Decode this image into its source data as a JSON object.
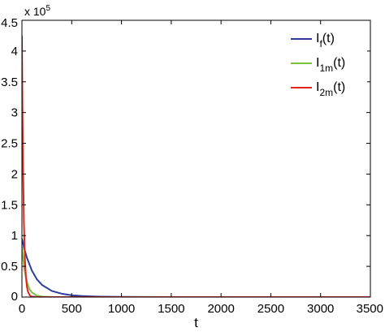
{
  "chart_data": {
    "type": "line",
    "xlabel": "t",
    "ylabel": "",
    "title": "",
    "xlim": [
      0,
      3500
    ],
    "ylim": [
      0,
      4.5
    ],
    "y_multiplier": {
      "base": "x 10",
      "exponent": "5"
    },
    "xticks": [
      "0",
      "500",
      "1000",
      "1500",
      "2000",
      "2500",
      "3000",
      "3500"
    ],
    "xtick_values": [
      0,
      500,
      1000,
      1500,
      2000,
      2500,
      3000,
      3500
    ],
    "yticks": [
      "0",
      "0.5",
      "1",
      "1.5",
      "2",
      "2.5",
      "3",
      "3.5",
      "4",
      "4.5"
    ],
    "ytick_values": [
      0,
      0.5,
      1,
      1.5,
      2,
      2.5,
      3,
      3.5,
      4,
      4.5
    ],
    "grid": false,
    "legend_position": "top-right",
    "series": [
      {
        "id": "If",
        "label_main": "I",
        "label_sub": "f",
        "label_tail": "(t)",
        "color": "#2b3e9c",
        "x": [
          0,
          25,
          50,
          100,
          150,
          200,
          300,
          400,
          500,
          600,
          700,
          800,
          1000,
          1200,
          1500,
          2000,
          2500,
          3000,
          3500
        ],
        "y": [
          0.95,
          0.78,
          0.64,
          0.43,
          0.29,
          0.2,
          0.1,
          0.055,
          0.03,
          0.018,
          0.011,
          0.007,
          0.003,
          0.0015,
          0.0005,
          0.0001,
          0,
          0,
          0
        ]
      },
      {
        "id": "I1m",
        "label_main": "I",
        "label_sub": "1m",
        "label_tail": "(t)",
        "color": "#7ac142",
        "x": [
          0,
          10,
          25,
          50,
          75,
          100,
          150,
          200,
          300,
          400,
          500,
          700,
          1000,
          1500,
          2000,
          2500,
          3000,
          3500
        ],
        "y": [
          0.82,
          0.66,
          0.45,
          0.25,
          0.13,
          0.075,
          0.025,
          0.009,
          0.002,
          0.0005,
          0.0001,
          0,
          0,
          0,
          0,
          0,
          0,
          0
        ]
      },
      {
        "id": "I2m",
        "label_main": "I",
        "label_sub": "2m",
        "label_tail": "(t)",
        "color": "#e0261d",
        "x": [
          0,
          5,
          10,
          20,
          30,
          40,
          50,
          60,
          80,
          100,
          150,
          200,
          500,
          1000,
          2000,
          3000,
          3500
        ],
        "y": [
          4.25,
          3.1,
          2.3,
          1.2,
          0.62,
          0.33,
          0.17,
          0.09,
          0.025,
          0.008,
          0.001,
          0,
          0,
          0,
          0,
          0,
          0
        ]
      }
    ]
  }
}
